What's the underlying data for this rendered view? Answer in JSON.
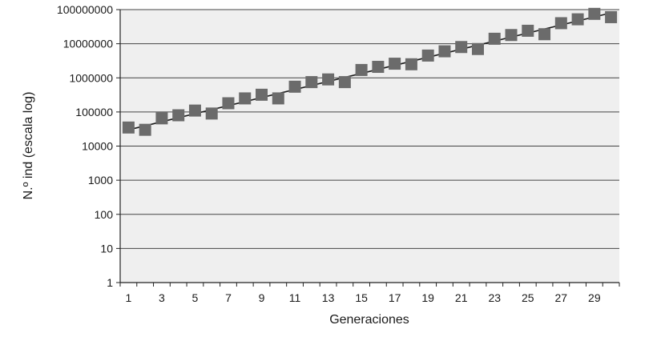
{
  "chart_data": {
    "type": "scatter",
    "title": "",
    "xlabel": "Generaciones",
    "ylabel": "N.º ind (escala log)",
    "yscale": "log",
    "ylim": [
      1,
      100000000
    ],
    "xlim": [
      0.5,
      30.5
    ],
    "y_ticks": [
      1,
      10,
      100,
      1000,
      10000,
      100000,
      1000000,
      10000000,
      100000000
    ],
    "y_tick_labels": [
      "1",
      "10",
      "100",
      "1000",
      "10000",
      "100000",
      "1000000",
      "10000000",
      "100000000"
    ],
    "x_tick_labels": [
      "1",
      "3",
      "5",
      "7",
      "9",
      "11",
      "13",
      "15",
      "17",
      "19",
      "21",
      "23",
      "25",
      "27",
      "29"
    ],
    "x_ticks": [
      1,
      3,
      5,
      7,
      9,
      11,
      13,
      15,
      17,
      19,
      21,
      23,
      25,
      27,
      29
    ],
    "grid": "horizontal",
    "legend": "none",
    "plot_background": "#efefef",
    "marker_color": "#6b6b6b",
    "trend_color": "#1a1a1a",
    "series": [
      {
        "marker": "square",
        "x": [
          1,
          2,
          3,
          4,
          5,
          6,
          7,
          8,
          9,
          10,
          11,
          12,
          13,
          14,
          15,
          16,
          17,
          18,
          19,
          20,
          21,
          22,
          23,
          24,
          25,
          26,
          27,
          28,
          29,
          30
        ],
        "y": [
          35000,
          30000,
          65000,
          80000,
          110000,
          90000,
          180000,
          250000,
          320000,
          250000,
          550000,
          750000,
          900000,
          750000,
          1700000,
          2100000,
          2600000,
          2500000,
          4500000,
          6000000,
          8000000,
          7000000,
          14000000,
          18000000,
          24000000,
          19000000,
          40000000,
          52000000,
          75000000,
          60000000
        ]
      }
    ],
    "trendline": {
      "type": "exponential",
      "x": [
        1,
        30
      ],
      "y": [
        30000,
        80000000
      ]
    }
  }
}
